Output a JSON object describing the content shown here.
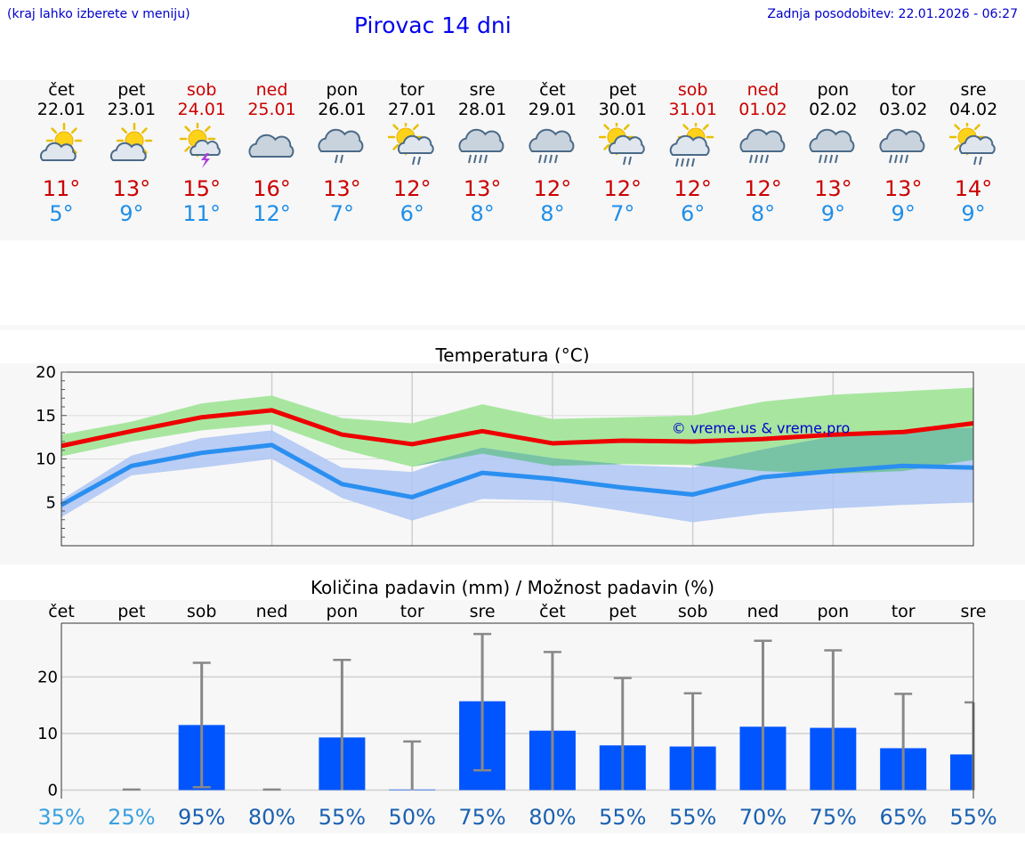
{
  "header": {
    "menu_hint": "(kraj lahko izberete v meniju)",
    "title": "Pirovac 14 dni",
    "updated": "Zadnja posodobitev: 22.01.2026 - 06:27"
  },
  "days": [
    {
      "name": "čet",
      "date": "22.01",
      "weekend": false,
      "icon": "partly-cloudy-icon",
      "tmax": "11°",
      "tmin": "5°"
    },
    {
      "name": "pet",
      "date": "23.01",
      "weekend": false,
      "icon": "partly-cloudy-icon",
      "tmax": "13°",
      "tmin": "9°"
    },
    {
      "name": "sob",
      "date": "24.01",
      "weekend": true,
      "icon": "sun-thunderstorm-icon",
      "tmax": "15°",
      "tmin": "11°"
    },
    {
      "name": "ned",
      "date": "25.01",
      "weekend": true,
      "icon": "cloudy-icon",
      "tmax": "16°",
      "tmin": "12°"
    },
    {
      "name": "pon",
      "date": "26.01",
      "weekend": false,
      "icon": "cloud-rain-icon",
      "tmax": "13°",
      "tmin": "7°"
    },
    {
      "name": "tor",
      "date": "27.01",
      "weekend": false,
      "icon": "sun-cloud-rain-icon",
      "tmax": "12°",
      "tmin": "6°"
    },
    {
      "name": "sre",
      "date": "28.01",
      "weekend": false,
      "icon": "cloud-heavy-rain-icon",
      "tmax": "13°",
      "tmin": "8°"
    },
    {
      "name": "čet",
      "date": "29.01",
      "weekend": false,
      "icon": "cloud-heavy-rain-icon",
      "tmax": "12°",
      "tmin": "8°"
    },
    {
      "name": "pet",
      "date": "30.01",
      "weekend": false,
      "icon": "sun-cloud-rain-icon",
      "tmax": "12°",
      "tmin": "7°"
    },
    {
      "name": "sob",
      "date": "31.01",
      "weekend": true,
      "icon": "sun-cloud-heavy-rain-icon",
      "tmax": "12°",
      "tmin": "6°"
    },
    {
      "name": "ned",
      "date": "01.02",
      "weekend": true,
      "icon": "cloud-heavy-rain-icon",
      "tmax": "12°",
      "tmin": "8°"
    },
    {
      "name": "pon",
      "date": "02.02",
      "weekend": false,
      "icon": "cloud-heavy-rain-icon",
      "tmax": "13°",
      "tmin": "9°"
    },
    {
      "name": "tor",
      "date": "03.02",
      "weekend": false,
      "icon": "cloud-heavy-rain-icon",
      "tmax": "13°",
      "tmin": "9°"
    },
    {
      "name": "sre",
      "date": "04.02",
      "weekend": false,
      "icon": "sun-cloud-rain-icon",
      "tmax": "14°",
      "tmin": "9°"
    }
  ],
  "colors": {
    "max_line": "#ee0000",
    "min_line": "#2a8ff0",
    "max_band": "#a8e6a0",
    "min_band": "#aec6f4",
    "overlap_band": "#78c3a6",
    "bar": "#0055ff",
    "error_bar": "#888888",
    "watermark": "#0000cc",
    "weekend_text": "#cc0000",
    "min_text": "#1e8ee8",
    "max_text": "#cc0000"
  },
  "chart_data": [
    {
      "type": "line",
      "title": "Temperatura (°C)",
      "watermark": "© vreme.us & vreme.pro",
      "ylim": [
        0,
        20
      ],
      "yticks": [
        20,
        15,
        10,
        5
      ],
      "x": [
        0,
        1,
        2,
        3,
        4,
        5,
        6,
        7,
        8,
        9,
        10,
        11,
        12,
        13
      ],
      "series": [
        {
          "name": "max",
          "values": [
            11.5,
            13.2,
            14.8,
            15.6,
            12.8,
            11.7,
            13.2,
            11.8,
            12.1,
            12.0,
            12.3,
            12.8,
            13.1,
            14.1
          ]
        },
        {
          "name": "min",
          "values": [
            4.7,
            9.2,
            10.7,
            11.6,
            7.1,
            5.6,
            8.4,
            7.7,
            6.7,
            5.9,
            7.9,
            8.6,
            9.2,
            9.0
          ]
        }
      ],
      "bands": [
        {
          "name": "max_range",
          "upper": [
            12.8,
            14.3,
            16.4,
            17.3,
            14.7,
            14.1,
            16.3,
            14.6,
            14.8,
            15.0,
            16.6,
            17.4,
            17.8,
            18.2
          ],
          "lower": [
            10.3,
            12.0,
            13.3,
            14.0,
            11.1,
            9.1,
            10.6,
            9.2,
            9.4,
            9.3,
            8.6,
            8.3,
            8.6,
            9.9
          ]
        },
        {
          "name": "min_range",
          "upper": [
            5.3,
            10.4,
            12.4,
            13.3,
            9.0,
            8.5,
            11.3,
            10.1,
            9.3,
            9.0,
            11.1,
            12.6,
            13.3,
            13.6
          ],
          "lower": [
            3.3,
            8.1,
            9.0,
            10.0,
            5.5,
            2.9,
            5.4,
            5.2,
            4.0,
            2.7,
            3.7,
            4.3,
            4.7,
            5.0
          ]
        }
      ]
    },
    {
      "type": "bar",
      "title": "Količina padavin (mm) / Možnost padavin (%)",
      "categories": [
        "čet",
        "pet",
        "sob",
        "ned",
        "pon",
        "tor",
        "sre",
        "čet",
        "pet",
        "sob",
        "ned",
        "pon",
        "tor",
        "sre"
      ],
      "values": [
        0,
        0,
        11.5,
        0,
        9.3,
        0.1,
        15.7,
        10.5,
        7.9,
        7.7,
        11.2,
        11.0,
        7.4,
        6.3
      ],
      "error_high": [
        0,
        0.1,
        22.5,
        0.1,
        23.0,
        8.6,
        27.6,
        24.4,
        19.8,
        17.1,
        26.4,
        24.7,
        17.0,
        15.5
      ],
      "error_low": [
        0,
        0,
        0.5,
        0,
        0,
        0,
        3.5,
        0,
        0,
        0,
        0,
        0,
        0,
        0
      ],
      "probabilities": [
        "35%",
        "25%",
        "95%",
        "80%",
        "55%",
        "50%",
        "75%",
        "80%",
        "55%",
        "55%",
        "70%",
        "75%",
        "65%",
        "55%"
      ],
      "ylim": [
        -1.5,
        29.5
      ],
      "yticks": [
        20,
        10,
        0
      ]
    }
  ]
}
